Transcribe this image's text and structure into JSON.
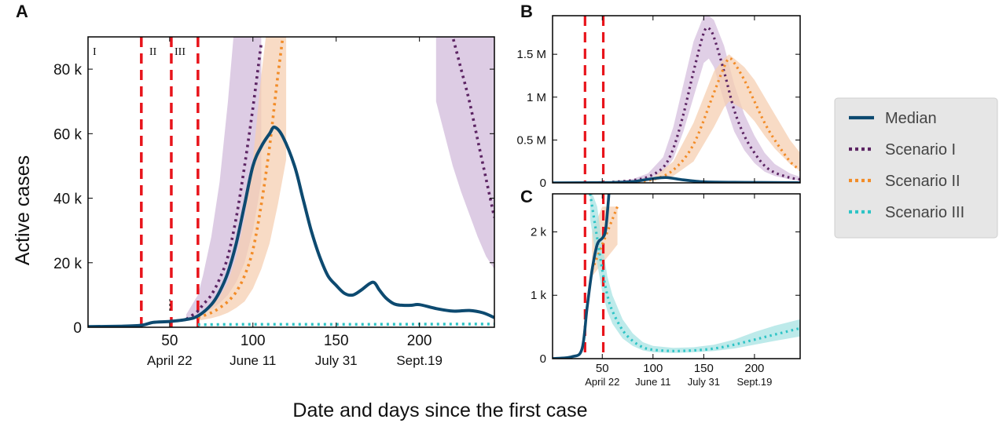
{
  "figure": {
    "xlabel": "Date and days since the first case",
    "ylabel": "Active cases",
    "phase_labels": [
      "I",
      "II",
      "III"
    ]
  },
  "legend": {
    "entries": [
      {
        "label": "Median",
        "color": "#0d4a70",
        "style": "solid"
      },
      {
        "label": "Scenario I",
        "color": "#5c2463",
        "style": "dotted"
      },
      {
        "label": "Scenario II",
        "color": "#f28c28",
        "style": "dotted"
      },
      {
        "label": "Scenario III",
        "color": "#2ec4c6",
        "style": "dotted"
      }
    ]
  },
  "colors": {
    "median": "#0d4a70",
    "scenario1": "#5c2463",
    "scenario1_band": "#d5bfdd",
    "scenario2": "#f28c28",
    "scenario2_band": "#f6cfb1",
    "scenario3": "#2ec4c6",
    "scenario3_band": "#a7e3e3",
    "phase_lines": "#e8141b"
  },
  "chart_data": [
    {
      "panel": "A",
      "type": "line",
      "xlim": [
        1,
        245
      ],
      "ylim": [
        0,
        90000
      ],
      "x_ticks": [
        50,
        100,
        150,
        200
      ],
      "x_tick_labels": [
        "50",
        "100",
        "150",
        "200"
      ],
      "date_ticks": [
        {
          "x": 50,
          "label": "April 22"
        },
        {
          "x": 100,
          "label": "June 11"
        },
        {
          "x": 150,
          "label": "July 31"
        },
        {
          "x": 200,
          "label": "Sept.19"
        }
      ],
      "y_ticks": [
        0,
        20000,
        40000,
        60000,
        80000
      ],
      "y_tick_labels": [
        "0",
        "20 k",
        "40 k",
        "60 k",
        "80 k"
      ],
      "phase_lines": [
        33,
        51,
        67
      ],
      "median": {
        "x": [
          1,
          20,
          33,
          40,
          50,
          60,
          67,
          75,
          80,
          85,
          90,
          95,
          100,
          105,
          110,
          113,
          118,
          125,
          130,
          135,
          140,
          145,
          150,
          155,
          160,
          165,
          170,
          173,
          176,
          180,
          185,
          190,
          195,
          200,
          210,
          220,
          230,
          238,
          245
        ],
        "y": [
          200,
          300,
          600,
          1500,
          1800,
          2400,
          3500,
          7000,
          11000,
          17000,
          26000,
          38000,
          50000,
          56000,
          60000,
          62000,
          59000,
          50000,
          40000,
          30000,
          22000,
          16000,
          13000,
          10500,
          10000,
          11500,
          13500,
          13800,
          11500,
          9000,
          7200,
          6800,
          6800,
          7000,
          5800,
          5000,
          5200,
          4500,
          3000
        ]
      },
      "scenarios": [
        {
          "name": "Scenario I",
          "x": [
            60,
            67,
            70,
            75,
            80,
            85,
            90,
            95,
            100,
            105,
            210,
            215,
            220,
            225,
            230,
            235,
            240,
            245
          ],
          "y": [
            2500,
            5000,
            7000,
            10000,
            15000,
            22000,
            34000,
            50000,
            68000,
            88000,
            110000,
            100000,
            90000,
            80000,
            70000,
            58000,
            46000,
            34000
          ],
          "lo": [
            2000,
            3500,
            4500,
            5500,
            7500,
            10000,
            14000,
            20000,
            30000,
            45000,
            70000,
            60000,
            50000,
            42000,
            35000,
            28000,
            22000,
            18000
          ],
          "hi": [
            4000,
            10000,
            16000,
            28000,
            45000,
            70000,
            100000,
            100000,
            100000,
            100000,
            100000,
            100000,
            100000,
            100000,
            100000,
            100000,
            100000,
            100000
          ]
        },
        {
          "name": "Scenario II",
          "x": [
            67,
            75,
            80,
            85,
            90,
            95,
            100,
            105,
            110,
            115,
            120
          ],
          "y": [
            3000,
            4500,
            6000,
            8000,
            11000,
            16000,
            24000,
            38000,
            56000,
            78000,
            98000
          ],
          "lo": [
            2000,
            2800,
            3500,
            4500,
            6000,
            8000,
            12000,
            18000,
            26000,
            38000,
            52000
          ],
          "hi": [
            4000,
            6500,
            9500,
            14000,
            22000,
            34000,
            52000,
            78000,
            100000,
            100000,
            100000
          ]
        },
        {
          "name": "Scenario III",
          "x": [
            67,
            100,
            150,
            200,
            245
          ],
          "y": [
            800,
            900,
            900,
            950,
            1000
          ]
        }
      ]
    },
    {
      "panel": "B",
      "type": "line",
      "xlim": [
        1,
        245
      ],
      "ylim": [
        0,
        1950000
      ],
      "y_ticks": [
        0,
        500000,
        1000000,
        1500000
      ],
      "y_tick_labels": [
        "0",
        "0.5 M",
        "1 M",
        "1.5 M"
      ],
      "phase_lines": [
        33,
        51
      ],
      "median": {
        "x": [
          1,
          40,
          60,
          80,
          100,
          113,
          130,
          150,
          180,
          210,
          245
        ],
        "y": [
          0,
          2000,
          5000,
          15000,
          50000,
          62000,
          35000,
          12000,
          6000,
          4000,
          2000
        ]
      },
      "scenarios": [
        {
          "name": "Scenario I",
          "x": [
            60,
            80,
            95,
            110,
            120,
            130,
            140,
            150,
            155,
            160,
            170,
            180,
            190,
            200,
            210,
            220,
            235,
            245
          ],
          "y": [
            10000,
            30000,
            70000,
            180000,
            400000,
            800000,
            1300000,
            1750000,
            1800000,
            1700000,
            1300000,
            850000,
            550000,
            350000,
            200000,
            120000,
            60000,
            40000
          ],
          "lo": [
            5000,
            20000,
            50000,
            120000,
            280000,
            600000,
            1000000,
            1400000,
            1450000,
            1350000,
            950000,
            600000,
            380000,
            230000,
            130000,
            80000,
            40000,
            25000
          ],
          "hi": [
            15000,
            45000,
            110000,
            300000,
            650000,
            1150000,
            1650000,
            1950000,
            1950000,
            1900000,
            1600000,
            1150000,
            800000,
            550000,
            350000,
            220000,
            110000,
            70000
          ]
        },
        {
          "name": "Scenario II",
          "x": [
            80,
            100,
            120,
            140,
            160,
            170,
            175,
            180,
            190,
            200,
            210,
            220,
            235,
            245
          ],
          "y": [
            10000,
            40000,
            150000,
            450000,
            1050000,
            1350000,
            1450000,
            1400000,
            1200000,
            950000,
            700000,
            500000,
            250000,
            150000
          ],
          "lo": [
            5000,
            20000,
            80000,
            250000,
            650000,
            880000,
            950000,
            920000,
            850000,
            720000,
            550000,
            400000,
            220000,
            140000
          ],
          "hi": [
            15000,
            60000,
            250000,
            700000,
            1300000,
            1450000,
            1500000,
            1450000,
            1350000,
            1200000,
            1000000,
            800000,
            500000,
            350000
          ]
        }
      ]
    },
    {
      "panel": "C",
      "type": "line",
      "xlim": [
        1,
        245
      ],
      "ylim": [
        0,
        2600
      ],
      "x_ticks": [
        50,
        100,
        150,
        200
      ],
      "x_tick_labels": [
        "50",
        "100",
        "150",
        "200"
      ],
      "date_ticks": [
        {
          "x": 50,
          "label": "April 22"
        },
        {
          "x": 100,
          "label": "June 11"
        },
        {
          "x": 150,
          "label": "July 31"
        },
        {
          "x": 200,
          "label": "Sept.19"
        }
      ],
      "y_ticks": [
        0,
        1000,
        2000
      ],
      "y_tick_labels": [
        "0",
        "1 k",
        "2 k"
      ],
      "phase_lines": [
        33,
        51
      ],
      "median": {
        "x": [
          1,
          20,
          30,
          35,
          40,
          45,
          50,
          53,
          55,
          57
        ],
        "y": [
          0,
          30,
          150,
          800,
          1400,
          1800,
          1900,
          2000,
          2300,
          2700
        ]
      },
      "scenarios": [
        {
          "name": "Scenario II",
          "x": [
            40,
            45,
            50,
            55,
            60,
            65
          ],
          "y": [
            1400,
            1600,
            1800,
            2000,
            2200,
            2400
          ],
          "lo": [
            1300,
            1400,
            1500,
            1600,
            1700,
            1800
          ],
          "hi": [
            2000,
            2200,
            2400,
            2400,
            2400,
            2400
          ]
        },
        {
          "name": "Scenario III",
          "x": [
            38,
            45,
            50,
            55,
            60,
            70,
            80,
            90,
            100,
            120,
            140,
            160,
            180,
            200,
            220,
            245
          ],
          "y": [
            2600,
            1900,
            1400,
            1000,
            750,
            450,
            280,
            180,
            140,
            120,
            130,
            160,
            220,
            300,
            380,
            480
          ],
          "lo": [
            2200,
            1500,
            1050,
            750,
            550,
            320,
            200,
            130,
            100,
            90,
            100,
            120,
            160,
            220,
            280,
            350
          ],
          "hi": [
            2700,
            2400,
            1800,
            1300,
            1000,
            620,
            400,
            260,
            200,
            170,
            180,
            220,
            300,
            420,
            520,
            620
          ]
        }
      ]
    }
  ]
}
